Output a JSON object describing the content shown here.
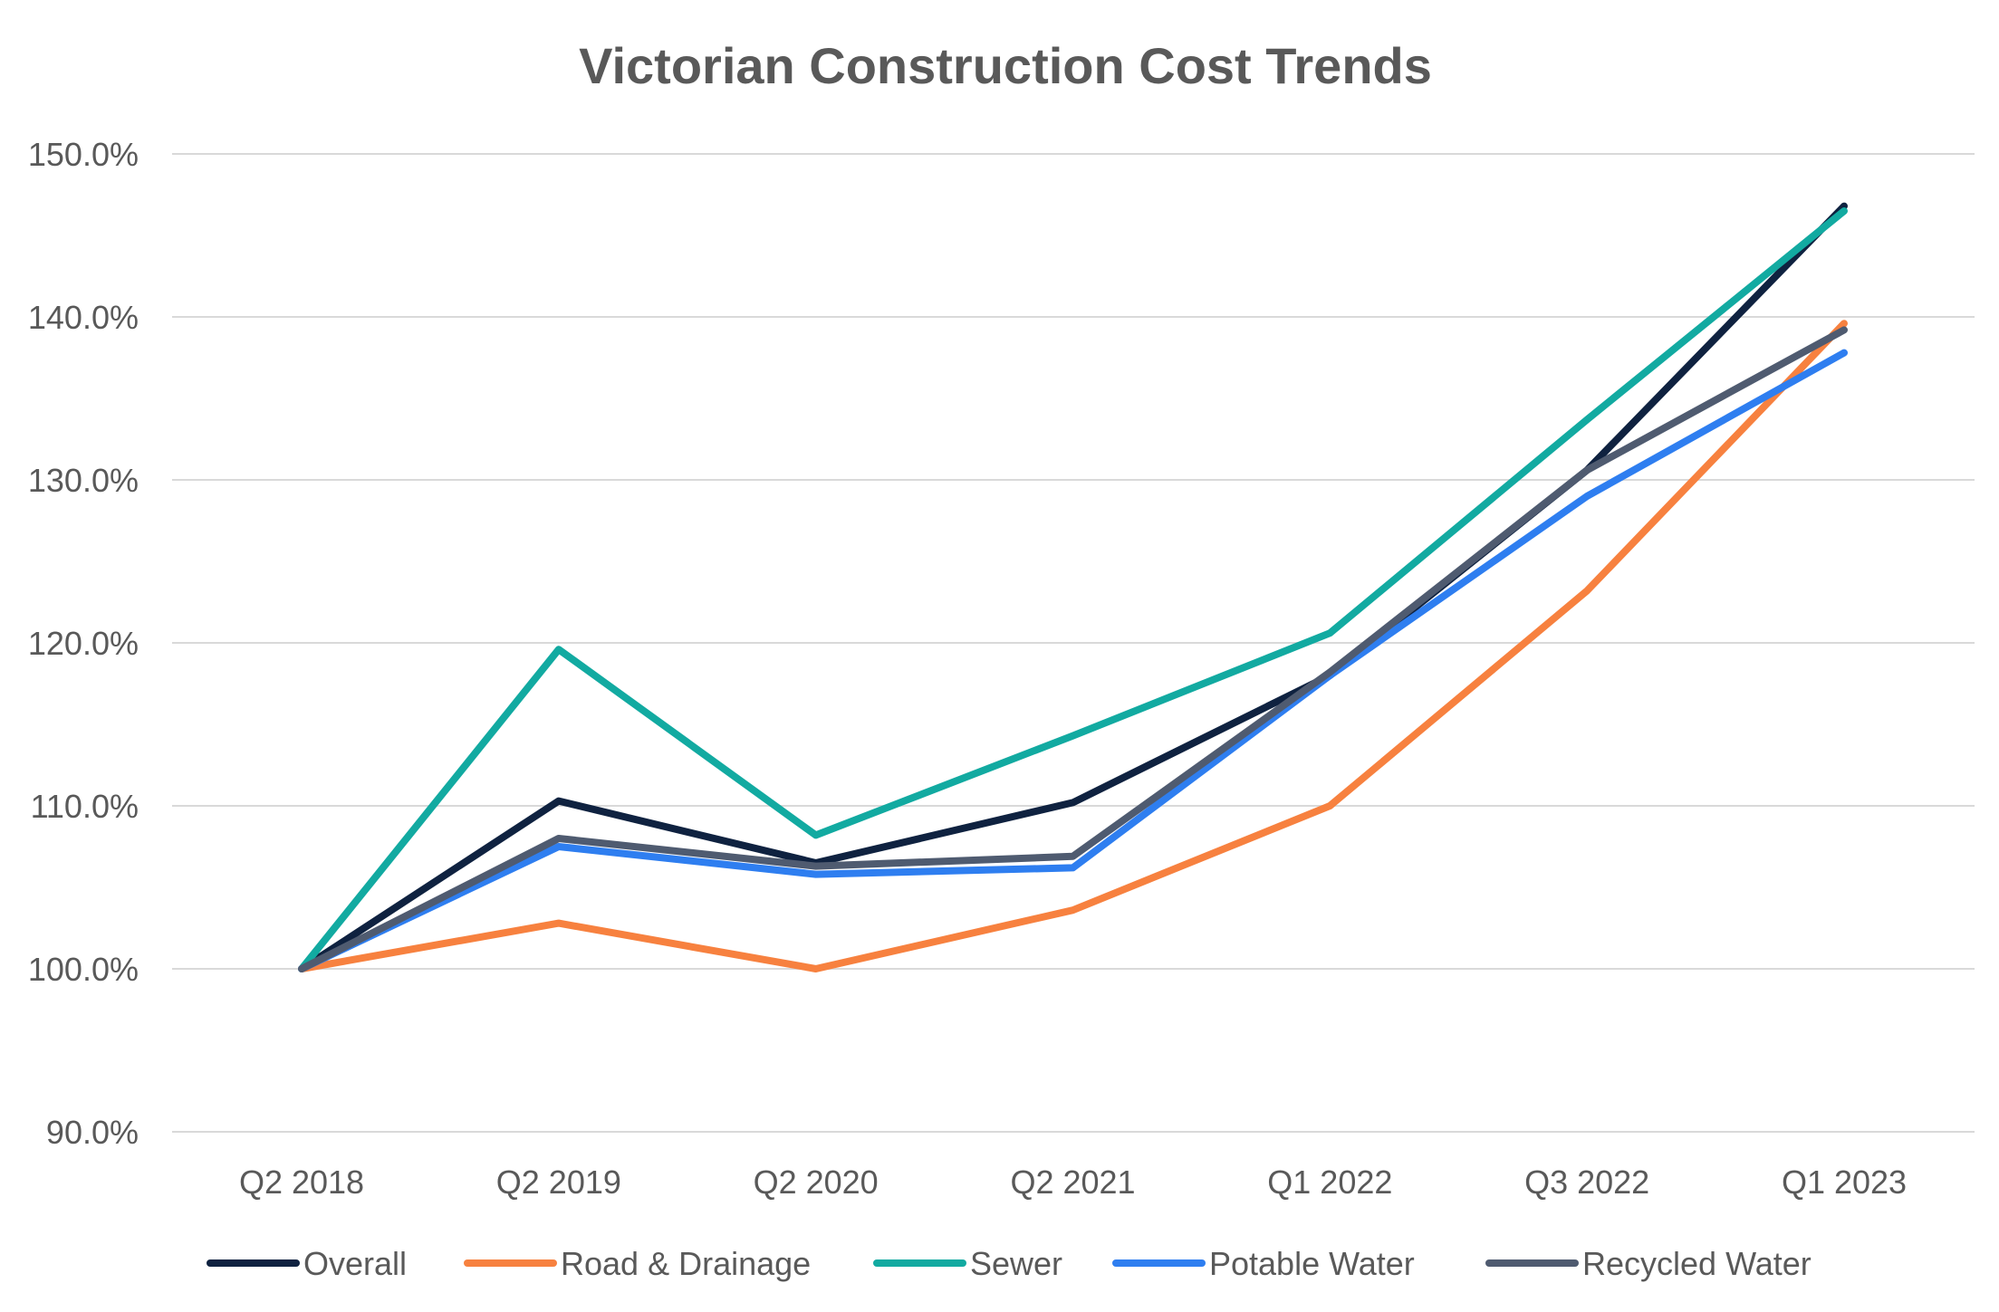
{
  "chart_data": {
    "type": "line",
    "title": "Victorian Construction Cost Trends",
    "xlabel": "",
    "ylabel": "",
    "categories": [
      "Q2 2018",
      "Q2 2019",
      "Q2 2020",
      "Q2 2021",
      "Q1 2022",
      "Q3 2022",
      "Q1 2023"
    ],
    "ylim": [
      90,
      150
    ],
    "yticks": [
      90,
      100,
      110,
      120,
      130,
      140,
      150
    ],
    "ytick_labels": [
      "90.0%",
      "100.0%",
      "110.0%",
      "120.0%",
      "130.0%",
      "140.0%",
      "150.0%"
    ],
    "grid": true,
    "legend_position": "bottom",
    "series": [
      {
        "name": "Overall",
        "color": "#0f2240",
        "values": [
          100.0,
          110.3,
          106.5,
          110.2,
          118.0,
          130.6,
          146.8
        ]
      },
      {
        "name": "Road & Drainage",
        "color": "#f7813f",
        "values": [
          100.0,
          102.8,
          100.0,
          103.6,
          110.0,
          123.2,
          139.6
        ]
      },
      {
        "name": "Sewer",
        "color": "#12aaa1",
        "values": [
          100.0,
          119.6,
          108.2,
          114.3,
          120.6,
          133.7,
          146.5
        ]
      },
      {
        "name": "Potable Water",
        "color": "#2e7ef0",
        "values": [
          100.0,
          107.5,
          105.8,
          106.2,
          118.0,
          129.0,
          137.8
        ]
      },
      {
        "name": "Recycled Water",
        "color": "#4f5b70",
        "values": [
          100.0,
          108.0,
          106.3,
          106.9,
          118.2,
          130.6,
          139.2
        ]
      }
    ]
  }
}
